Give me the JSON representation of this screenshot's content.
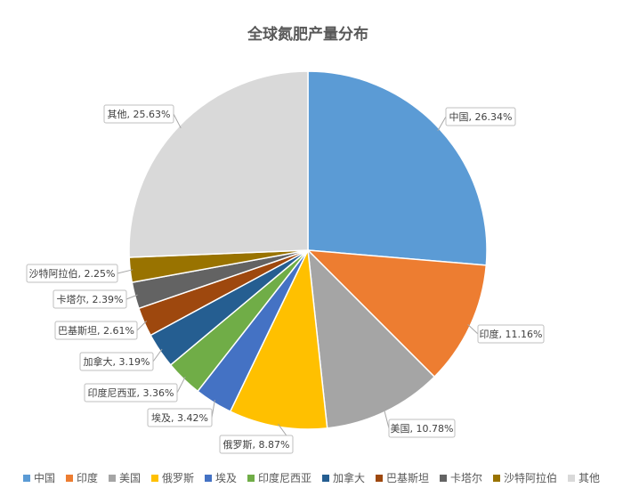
{
  "chart_data": {
    "type": "pie",
    "title": "全球氮肥产量分布",
    "legend_position": "bottom",
    "slices": [
      {
        "name": "中国",
        "value": 26.34,
        "label": "中国, 26.34%",
        "color": "#5B9BD5"
      },
      {
        "name": "印度",
        "value": 11.16,
        "label": "印度, 11.16%",
        "color": "#ED7D31"
      },
      {
        "name": "美国",
        "value": 10.78,
        "label": "美国, 10.78%",
        "color": "#A5A5A5"
      },
      {
        "name": "俄罗斯",
        "value": 8.87,
        "label": "俄罗斯, 8.87%",
        "color": "#FFC000"
      },
      {
        "name": "埃及",
        "value": 3.42,
        "label": "埃及, 3.42%",
        "color": "#4472C4"
      },
      {
        "name": "印度尼西亚",
        "value": 3.36,
        "label": "印度尼西亚, 3.36%",
        "color": "#70AD47"
      },
      {
        "name": "加拿大",
        "value": 3.19,
        "label": "加拿大, 3.19%",
        "color": "#255E91"
      },
      {
        "name": "巴基斯坦",
        "value": 2.61,
        "label": "巴基斯坦, 2.61%",
        "color": "#9E480E"
      },
      {
        "name": "卡塔尔",
        "value": 2.39,
        "label": "卡塔尔, 2.39%",
        "color": "#636363"
      },
      {
        "name": "沙特阿拉伯",
        "value": 2.25,
        "label": "沙特阿拉伯, 2.25%",
        "color": "#997300"
      },
      {
        "name": "其他",
        "value": 25.63,
        "label": "其他, 25.63%",
        "color": "#D9D9D9"
      }
    ]
  }
}
